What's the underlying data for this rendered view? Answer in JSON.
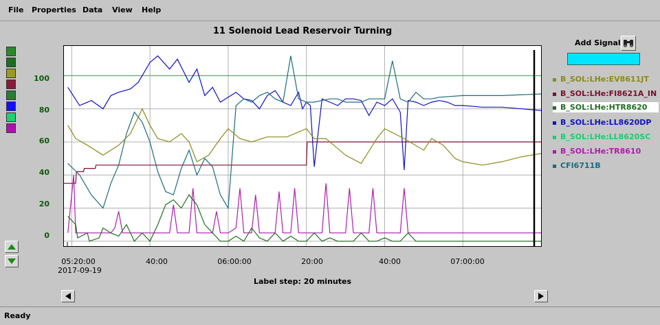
{
  "menu": [
    "File",
    "Properties",
    "Data",
    "View",
    "Help"
  ],
  "plot": {
    "title": "11 Solenoid  Lead Reservoir Turning",
    "label_step": "Label step: 20 minutes",
    "date": "2017-09-19",
    "xticks": [
      "05:20:00",
      "40:00",
      "06:00:00",
      "20:00",
      "40:00",
      "07:00:00"
    ],
    "yticks": [
      "100",
      "80",
      "60",
      "40",
      "20",
      "0"
    ]
  },
  "add_signal": {
    "label": "Add Signal",
    "value": ""
  },
  "legend": [
    {
      "name": "B_SOL:LHe:EV8611JT",
      "color": "#8a8a1a"
    },
    {
      "name": "B_SOL:LHe:FI8621A_IN",
      "color": "#7a0f2e"
    },
    {
      "name": "B_SOL:LHe:HTR8620",
      "color": "#1f6e1f"
    },
    {
      "name": "B_SOL:LHe:LL8620DP",
      "color": "#1010c8"
    },
    {
      "name": "B_SOL:LHe:LL8620SC",
      "color": "#1ccc6c"
    },
    {
      "name": "B_SOL:LHe:TR8610",
      "color": "#b01ab0"
    },
    {
      "name": "CFI6711B",
      "color": "#1a6a80"
    }
  ],
  "swatch_colors": [
    "#2a8a2a",
    "#1f6e1f",
    "#9a9a20",
    "#8a1a3a",
    "#2a7a3a",
    "#1010ff",
    "#20d070",
    "#b010b0"
  ],
  "status": "Ready",
  "chart_data": {
    "type": "line",
    "title": "11 Solenoid  Lead Reservoir Turning",
    "xlabel": "Label step: 20 minutes",
    "ylim": [
      -3,
      118
    ],
    "x_ticks": [
      "05:20:00",
      "05:40:00",
      "06:00:00",
      "06:20:00",
      "06:40:00",
      "07:00:00"
    ],
    "x_minutes": [
      0,
      20,
      40,
      60,
      80,
      100
    ],
    "x_range_minutes": [
      -2,
      120
    ],
    "series": [
      {
        "name": "B_SOL:LHe:LL8620SC",
        "color": "#1ccc6c",
        "x": [
          -2,
          120
        ],
        "values": [
          100,
          100
        ]
      },
      {
        "name": "B_SOL:LHe:FI8621A_IN",
        "color": "#7a0f2e",
        "x": [
          -2,
          1,
          1.2,
          3,
          3.2,
          6,
          6.2,
          10,
          10.2,
          60,
          60.2,
          120
        ],
        "values": [
          35,
          35,
          42,
          42,
          44,
          44,
          46,
          46,
          46,
          46,
          60,
          60
        ]
      },
      {
        "name": "B_SOL:LHe:LL8620DP",
        "color": "#1010c8",
        "x": [
          -1,
          2,
          5,
          8,
          10,
          12,
          15,
          17,
          20,
          22,
          25,
          27,
          30,
          32,
          34,
          36,
          38,
          40,
          42,
          44,
          46,
          48,
          50,
          52,
          54,
          56,
          58,
          59,
          60,
          61,
          62,
          64,
          66,
          68,
          70,
          72,
          74,
          76,
          78,
          80,
          82,
          84,
          85,
          86,
          88,
          90,
          92,
          94,
          96,
          98,
          100,
          105,
          110,
          115,
          120
        ],
        "values": [
          93,
          82,
          85,
          80,
          88,
          90,
          92,
          96,
          108,
          112,
          104,
          110,
          96,
          104,
          88,
          93,
          84,
          87,
          90,
          86,
          85,
          80,
          88,
          91,
          84,
          82,
          90,
          80,
          84,
          82,
          45,
          86,
          84,
          82,
          86,
          86,
          85,
          76,
          84,
          82,
          86,
          78,
          43,
          85,
          84,
          82,
          84,
          85,
          84,
          82,
          82,
          81,
          81,
          80,
          79
        ]
      },
      {
        "name": "CFI6711B",
        "color": "#1a6a80",
        "x": [
          -1,
          2,
          5,
          8,
          10,
          12,
          14,
          16,
          18,
          20,
          22,
          24,
          26,
          28,
          30,
          32,
          34,
          36,
          38,
          40,
          42,
          44,
          46,
          48,
          50,
          52,
          54,
          56,
          58,
          60,
          62,
          64,
          66,
          68,
          70,
          72,
          74,
          76,
          78,
          80,
          82,
          84,
          86,
          88,
          90,
          92,
          94,
          100,
          110,
          120
        ],
        "values": [
          47,
          40,
          28,
          20,
          35,
          46,
          65,
          78,
          72,
          60,
          42,
          30,
          28,
          44,
          55,
          40,
          50,
          45,
          28,
          20,
          82,
          86,
          84,
          88,
          90,
          86,
          84,
          112,
          86,
          84,
          84,
          85,
          86,
          86,
          84,
          84,
          84,
          86,
          86,
          86,
          109,
          86,
          84,
          90,
          86,
          86,
          87,
          88,
          88,
          89
        ]
      },
      {
        "name": "B_SOL:LHe:EV8611JT",
        "color": "#8a8a1a",
        "x": [
          -1,
          1,
          4,
          8,
          10,
          12,
          15,
          18,
          20,
          22,
          25,
          28,
          30,
          32,
          35,
          38,
          40,
          43,
          46,
          50,
          55,
          60,
          62,
          65,
          70,
          74,
          78,
          80,
          85,
          90,
          92,
          95,
          98,
          100,
          105,
          110,
          115,
          120
        ],
        "values": [
          70,
          62,
          58,
          52,
          55,
          58,
          65,
          80,
          70,
          62,
          60,
          65,
          60,
          48,
          52,
          62,
          68,
          62,
          60,
          63,
          63,
          68,
          62,
          62,
          52,
          47,
          62,
          68,
          62,
          55,
          62,
          58,
          50,
          48,
          46,
          48,
          51,
          53
        ]
      },
      {
        "name": "B_SOL:LHe:TR8610",
        "color": "#b01ab0",
        "x": [
          -1,
          0.5,
          1,
          1.5,
          3,
          6,
          10,
          11,
          12,
          13,
          18,
          22,
          25,
          26,
          27,
          30,
          31,
          32,
          36,
          37,
          38,
          40,
          42,
          43,
          44,
          46,
          47,
          48,
          50,
          52,
          53,
          54,
          56,
          57,
          58,
          60,
          64,
          65,
          66,
          70,
          71,
          72,
          76,
          77,
          78,
          84,
          85,
          86,
          88,
          90,
          100,
          110,
          120
        ],
        "values": [
          5,
          40,
          5,
          5,
          5,
          5,
          5,
          8,
          18,
          5,
          5,
          5,
          5,
          22,
          5,
          5,
          32,
          5,
          5,
          18,
          5,
          5,
          8,
          32,
          5,
          5,
          28,
          5,
          5,
          5,
          30,
          5,
          5,
          32,
          5,
          5,
          5,
          35,
          5,
          5,
          32,
          5,
          5,
          32,
          5,
          5,
          32,
          5,
          5,
          5,
          5,
          5,
          5
        ]
      },
      {
        "name": "B_SOL:LHe:HTR8620",
        "color": "#1f6e1f",
        "x": [
          -1,
          1,
          1.5,
          4,
          4.5,
          7,
          8,
          10,
          12,
          14,
          16,
          18,
          20,
          22,
          24,
          26,
          28,
          30,
          32,
          34,
          36,
          38,
          40,
          42,
          44,
          46,
          48,
          50,
          52,
          54,
          56,
          58,
          60,
          62,
          64,
          66,
          68,
          70,
          72,
          74,
          76,
          78,
          80,
          82,
          84,
          86,
          88,
          90,
          100,
          110,
          120
        ],
        "values": [
          15,
          10,
          2,
          5,
          0,
          2,
          8,
          5,
          3,
          10,
          0,
          5,
          0,
          10,
          22,
          25,
          20,
          28,
          22,
          10,
          5,
          0,
          0,
          3,
          0,
          8,
          2,
          0,
          5,
          0,
          3,
          0,
          0,
          5,
          0,
          2,
          0,
          0,
          0,
          5,
          0,
          0,
          2,
          0,
          0,
          5,
          0,
          0,
          0,
          0,
          0
        ]
      }
    ]
  }
}
